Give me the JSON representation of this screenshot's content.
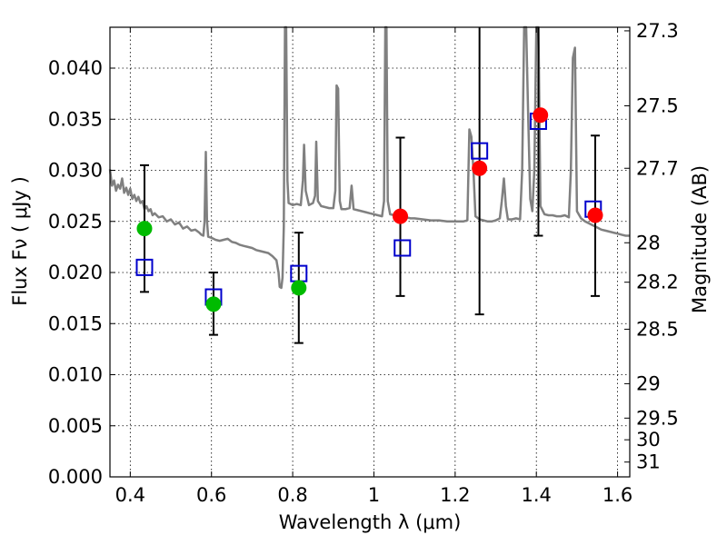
{
  "chart_data": {
    "type": "scatter",
    "title": "",
    "xlabel": "Wavelength  λ (μm)",
    "ylabel_left": "Flux  Fν  ( μJy )",
    "ylabel_right": "Magnitude (AB)",
    "xlim": [
      0.35,
      1.63
    ],
    "ylim": [
      0.0,
      0.044
    ],
    "grid": true,
    "x_ticks": [
      {
        "value": 0.4,
        "label": "0.4"
      },
      {
        "value": 0.6,
        "label": "0.6"
      },
      {
        "value": 0.8,
        "label": "0.8"
      },
      {
        "value": 1.0,
        "label": "1"
      },
      {
        "value": 1.2,
        "label": "1.2"
      },
      {
        "value": 1.4,
        "label": "1.4"
      },
      {
        "value": 1.6,
        "label": "1.6"
      }
    ],
    "y_ticks": [
      {
        "value": 0.0,
        "label": "0.000"
      },
      {
        "value": 0.005,
        "label": "0.005"
      },
      {
        "value": 0.01,
        "label": "0.010"
      },
      {
        "value": 0.015,
        "label": "0.015"
      },
      {
        "value": 0.02,
        "label": "0.020"
      },
      {
        "value": 0.025,
        "label": "0.025"
      },
      {
        "value": 0.03,
        "label": "0.030"
      },
      {
        "value": 0.035,
        "label": "0.035"
      },
      {
        "value": 0.04,
        "label": "0.040"
      }
    ],
    "right_ticks": [
      {
        "flux": 0.04365,
        "label": "27.3"
      },
      {
        "flux": 0.03631,
        "label": "27.5"
      },
      {
        "flux": 0.0302,
        "label": "27.7"
      },
      {
        "flux": 0.02291,
        "label": "28"
      },
      {
        "flux": 0.01905,
        "label": "28.2"
      },
      {
        "flux": 0.01445,
        "label": "28.5"
      },
      {
        "flux": 0.00912,
        "label": "29"
      },
      {
        "flux": 0.00575,
        "label": "29.5"
      },
      {
        "flux": 0.00363,
        "label": "30"
      },
      {
        "flux": 0.00145,
        "label": "31"
      }
    ],
    "series": [
      {
        "type": "line",
        "color": "#808080",
        "points": [
          [
            0.35,
            0.0301
          ],
          [
            0.355,
            0.0285
          ],
          [
            0.36,
            0.029
          ],
          [
            0.365,
            0.028
          ],
          [
            0.37,
            0.0286
          ],
          [
            0.375,
            0.0282
          ],
          [
            0.38,
            0.0292
          ],
          [
            0.385,
            0.0278
          ],
          [
            0.39,
            0.0283
          ],
          [
            0.395,
            0.0276
          ],
          [
            0.4,
            0.0282
          ],
          [
            0.405,
            0.0272
          ],
          [
            0.41,
            0.0276
          ],
          [
            0.415,
            0.027
          ],
          [
            0.42,
            0.0274
          ],
          [
            0.425,
            0.0268
          ],
          [
            0.43,
            0.027
          ],
          [
            0.435,
            0.0262
          ],
          [
            0.44,
            0.0265
          ],
          [
            0.445,
            0.026
          ],
          [
            0.45,
            0.0262
          ],
          [
            0.455,
            0.0256
          ],
          [
            0.46,
            0.0258
          ],
          [
            0.47,
            0.0254
          ],
          [
            0.48,
            0.0255
          ],
          [
            0.49,
            0.025
          ],
          [
            0.5,
            0.0252
          ],
          [
            0.51,
            0.0247
          ],
          [
            0.52,
            0.0249
          ],
          [
            0.53,
            0.0243
          ],
          [
            0.54,
            0.0245
          ],
          [
            0.55,
            0.0241
          ],
          [
            0.56,
            0.0242
          ],
          [
            0.57,
            0.0239
          ],
          [
            0.575,
            0.0237
          ],
          [
            0.58,
            0.0236
          ],
          [
            0.583,
            0.025
          ],
          [
            0.586,
            0.0318
          ],
          [
            0.589,
            0.025
          ],
          [
            0.592,
            0.0235
          ],
          [
            0.6,
            0.0234
          ],
          [
            0.61,
            0.0232
          ],
          [
            0.62,
            0.0231
          ],
          [
            0.63,
            0.0232
          ],
          [
            0.64,
            0.0233
          ],
          [
            0.65,
            0.023
          ],
          [
            0.66,
            0.0229
          ],
          [
            0.67,
            0.0227
          ],
          [
            0.68,
            0.0226
          ],
          [
            0.69,
            0.0225
          ],
          [
            0.7,
            0.0224
          ],
          [
            0.71,
            0.0222
          ],
          [
            0.72,
            0.0221
          ],
          [
            0.73,
            0.022
          ],
          [
            0.74,
            0.0219
          ],
          [
            0.75,
            0.0216
          ],
          [
            0.76,
            0.0212
          ],
          [
            0.765,
            0.02
          ],
          [
            0.768,
            0.0186
          ],
          [
            0.772,
            0.0185
          ],
          [
            0.775,
            0.0195
          ],
          [
            0.778,
            0.0245
          ],
          [
            0.781,
            0.044
          ],
          [
            0.784,
            0.044
          ],
          [
            0.787,
            0.029
          ],
          [
            0.79,
            0.0268
          ],
          [
            0.8,
            0.0266
          ],
          [
            0.81,
            0.0267
          ],
          [
            0.82,
            0.0266
          ],
          [
            0.825,
            0.029
          ],
          [
            0.828,
            0.0325
          ],
          [
            0.832,
            0.028
          ],
          [
            0.84,
            0.0266
          ],
          [
            0.85,
            0.0268
          ],
          [
            0.855,
            0.0275
          ],
          [
            0.858,
            0.0328
          ],
          [
            0.862,
            0.027
          ],
          [
            0.87,
            0.0265
          ],
          [
            0.88,
            0.0264
          ],
          [
            0.89,
            0.0263
          ],
          [
            0.9,
            0.0263
          ],
          [
            0.905,
            0.028
          ],
          [
            0.908,
            0.0383
          ],
          [
            0.912,
            0.038
          ],
          [
            0.916,
            0.027
          ],
          [
            0.92,
            0.0262
          ],
          [
            0.93,
            0.0262
          ],
          [
            0.94,
            0.0263
          ],
          [
            0.945,
            0.0285
          ],
          [
            0.95,
            0.0262
          ],
          [
            0.96,
            0.0261
          ],
          [
            0.97,
            0.026
          ],
          [
            0.98,
            0.0259
          ],
          [
            0.99,
            0.0258
          ],
          [
            1.0,
            0.0257
          ],
          [
            1.01,
            0.0256
          ],
          [
            1.02,
            0.0255
          ],
          [
            1.025,
            0.027
          ],
          [
            1.028,
            0.044
          ],
          [
            1.031,
            0.044
          ],
          [
            1.034,
            0.027
          ],
          [
            1.04,
            0.0257
          ],
          [
            1.05,
            0.0256
          ],
          [
            1.06,
            0.0258
          ],
          [
            1.07,
            0.0255
          ],
          [
            1.08,
            0.0254
          ],
          [
            1.09,
            0.0253
          ],
          [
            1.1,
            0.0253
          ],
          [
            1.12,
            0.0252
          ],
          [
            1.14,
            0.0251
          ],
          [
            1.16,
            0.0251
          ],
          [
            1.18,
            0.025
          ],
          [
            1.2,
            0.025
          ],
          [
            1.22,
            0.025
          ],
          [
            1.23,
            0.0251
          ],
          [
            1.235,
            0.034
          ],
          [
            1.24,
            0.0333
          ],
          [
            1.245,
            0.03
          ],
          [
            1.25,
            0.0255
          ],
          [
            1.26,
            0.0252
          ],
          [
            1.27,
            0.0251
          ],
          [
            1.28,
            0.025
          ],
          [
            1.29,
            0.025
          ],
          [
            1.3,
            0.0251
          ],
          [
            1.31,
            0.0253
          ],
          [
            1.315,
            0.027
          ],
          [
            1.32,
            0.0292
          ],
          [
            1.325,
            0.0265
          ],
          [
            1.33,
            0.0252
          ],
          [
            1.34,
            0.0252
          ],
          [
            1.35,
            0.0253
          ],
          [
            1.36,
            0.0252
          ],
          [
            1.365,
            0.03
          ],
          [
            1.37,
            0.044
          ],
          [
            1.375,
            0.044
          ],
          [
            1.38,
            0.035
          ],
          [
            1.385,
            0.0272
          ],
          [
            1.39,
            0.026
          ],
          [
            1.395,
            0.03
          ],
          [
            1.4,
            0.044
          ],
          [
            1.405,
            0.044
          ],
          [
            1.41,
            0.0265
          ],
          [
            1.42,
            0.0257
          ],
          [
            1.43,
            0.0256
          ],
          [
            1.44,
            0.0256
          ],
          [
            1.45,
            0.0255
          ],
          [
            1.46,
            0.0255
          ],
          [
            1.47,
            0.0256
          ],
          [
            1.48,
            0.0254
          ],
          [
            1.485,
            0.03
          ],
          [
            1.49,
            0.041
          ],
          [
            1.495,
            0.042
          ],
          [
            1.5,
            0.026
          ],
          [
            1.51,
            0.0253
          ],
          [
            1.52,
            0.025
          ],
          [
            1.53,
            0.0248
          ],
          [
            1.54,
            0.0246
          ],
          [
            1.55,
            0.0244
          ],
          [
            1.56,
            0.0242
          ],
          [
            1.57,
            0.0241
          ],
          [
            1.58,
            0.024
          ],
          [
            1.59,
            0.0239
          ],
          [
            1.6,
            0.0238
          ],
          [
            1.61,
            0.0237
          ],
          [
            1.62,
            0.0236
          ],
          [
            1.63,
            0.0236
          ]
        ]
      },
      {
        "type": "scatter",
        "marker": "open-square",
        "color": "#0000cc",
        "points": [
          [
            0.435,
            0.0205
          ],
          [
            0.605,
            0.0176
          ],
          [
            0.815,
            0.0199
          ],
          [
            1.07,
            0.0224
          ],
          [
            1.26,
            0.0319
          ],
          [
            1.405,
            0.0348
          ],
          [
            1.54,
            0.0262
          ]
        ]
      },
      {
        "type": "scatter",
        "marker": "filled-circle",
        "color": "#00bb00",
        "points": [
          [
            0.435,
            0.0243
          ],
          [
            0.605,
            0.0169
          ],
          [
            0.815,
            0.0185
          ]
        ]
      },
      {
        "type": "scatter",
        "marker": "filled-circle",
        "color": "#ff0000",
        "points": [
          [
            1.065,
            0.0255
          ],
          [
            1.26,
            0.0302
          ],
          [
            1.41,
            0.0354
          ],
          [
            1.545,
            0.0256
          ]
        ]
      },
      {
        "type": "errorbar",
        "color": "#000000",
        "bars": [
          {
            "x": 0.435,
            "low": 0.0181,
            "high": 0.0305
          },
          {
            "x": 0.605,
            "low": 0.0139,
            "high": 0.02
          },
          {
            "x": 0.815,
            "low": 0.0131,
            "high": 0.0239
          },
          {
            "x": 1.065,
            "low": 0.0177,
            "high": 0.0332
          },
          {
            "x": 1.26,
            "low": 0.0159,
            "high": 0.044
          },
          {
            "x": 1.405,
            "low": 0.0236,
            "high": 0.044
          },
          {
            "x": 1.545,
            "low": 0.0177,
            "high": 0.0334
          }
        ]
      }
    ]
  }
}
